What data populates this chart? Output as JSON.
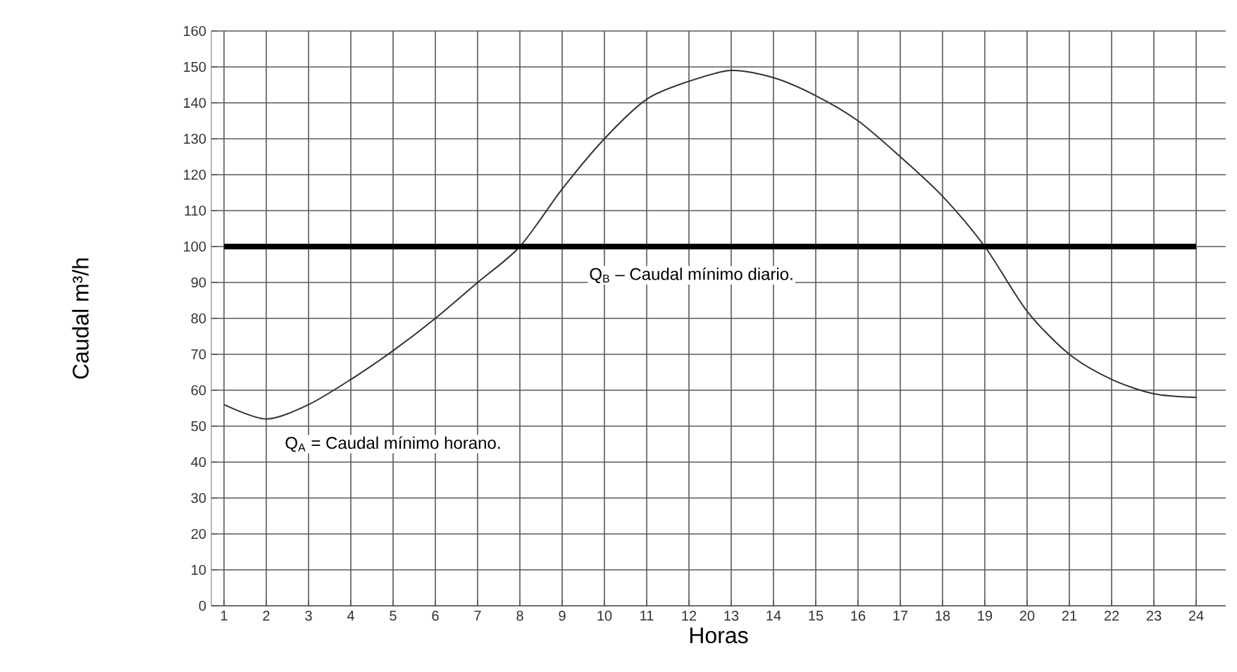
{
  "chart_data": {
    "type": "line",
    "xlabel": "Horas",
    "ylabel": "Caudal m³/h",
    "x": [
      1,
      2,
      3,
      4,
      5,
      6,
      7,
      8,
      9,
      10,
      11,
      12,
      13,
      14,
      15,
      16,
      17,
      18,
      19,
      20,
      21,
      22,
      23,
      24
    ],
    "series": [
      {
        "color": "#333333",
        "values": [
          56,
          52,
          56,
          63,
          71,
          80,
          90,
          100,
          116,
          130,
          141,
          146,
          149,
          147,
          142,
          135,
          125,
          114,
          100,
          82,
          70,
          63,
          59,
          58
        ]
      }
    ],
    "xlim": [
      0.7,
      24.7
    ],
    "ylim": [
      0,
      160
    ],
    "xticks": [
      1,
      2,
      3,
      4,
      5,
      6,
      7,
      8,
      9,
      10,
      11,
      12,
      13,
      14,
      15,
      16,
      17,
      18,
      19,
      20,
      21,
      22,
      23,
      24
    ],
    "yticks": [
      0,
      10,
      20,
      30,
      40,
      50,
      60,
      70,
      80,
      90,
      100,
      110,
      120,
      130,
      140,
      150,
      160
    ],
    "ref_lines": [
      {
        "axis": "y",
        "value": 100,
        "color": "#000000"
      }
    ],
    "annotations": [
      "Q$_{B}$ – Caudal mínimo diario.",
      "Q$_{A}$ = Caudal mínimo horano."
    ],
    "grid": true
  }
}
